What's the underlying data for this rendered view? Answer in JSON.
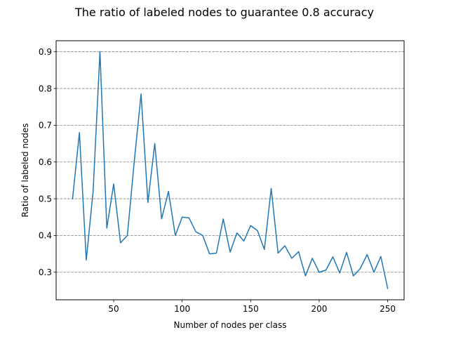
{
  "chart_data": {
    "type": "line",
    "title": "The ratio of labeled nodes to guarantee 0.8 accuracy",
    "xlabel": "Number of nodes per class",
    "ylabel": "Ratio of labeled nodes",
    "xlim": [
      8,
      262
    ],
    "ylim": [
      0.225,
      0.93
    ],
    "xticks": [
      50,
      100,
      150,
      200,
      250
    ],
    "xtick_labels": [
      "50",
      "100",
      "150",
      "200",
      "250"
    ],
    "yticks": [
      0.3,
      0.4,
      0.5,
      0.6,
      0.7,
      0.8,
      0.9
    ],
    "ytick_labels": [
      "0.3",
      "0.4",
      "0.5",
      "0.6",
      "0.7",
      "0.8",
      "0.9"
    ],
    "grid": "y-dashed",
    "line_color": "#1f77b4",
    "series": [
      {
        "x": [
          20,
          25,
          30,
          35,
          40,
          45,
          50,
          55,
          60,
          65,
          70,
          75,
          80,
          85,
          90,
          95,
          100,
          105,
          110,
          115,
          120,
          125,
          130,
          135,
          140,
          145,
          150,
          155,
          160,
          165,
          170,
          175,
          180,
          185,
          190,
          195,
          200,
          205,
          210,
          215,
          220,
          225,
          230,
          235,
          240,
          245,
          250
        ],
        "values": [
          0.5,
          0.68,
          0.333,
          0.52,
          0.9,
          0.42,
          0.54,
          0.38,
          0.4,
          0.6,
          0.785,
          0.49,
          0.65,
          0.445,
          0.52,
          0.4,
          0.45,
          0.448,
          0.41,
          0.4,
          0.35,
          0.352,
          0.445,
          0.355,
          0.407,
          0.385,
          0.427,
          0.413,
          0.362,
          0.528,
          0.352,
          0.372,
          0.338,
          0.356,
          0.29,
          0.338,
          0.3,
          0.306,
          0.342,
          0.298,
          0.354,
          0.29,
          0.31,
          0.348,
          0.3,
          0.343,
          0.256
        ]
      }
    ]
  }
}
